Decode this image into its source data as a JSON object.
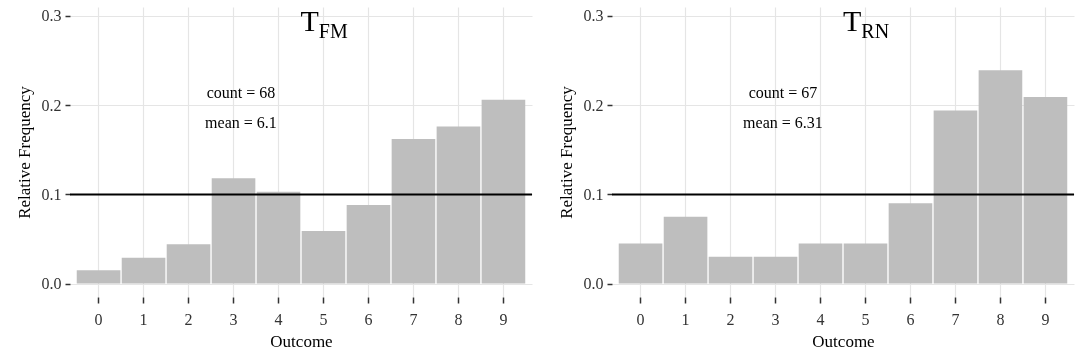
{
  "chart_data": [
    {
      "type": "bar",
      "title": "T$_{FM}$",
      "xlabel": "Outcome",
      "ylabel": "Relative Frequency",
      "categories": [
        "0",
        "1",
        "2",
        "3",
        "4",
        "5",
        "6",
        "7",
        "8",
        "9"
      ],
      "values": [
        0.015,
        0.029,
        0.044,
        0.118,
        0.103,
        0.059,
        0.088,
        0.162,
        0.176,
        0.206
      ],
      "color": "#bebebe",
      "ylim": [
        -0.015,
        0.31
      ],
      "yticks": [
        {
          "value": 0,
          "label": "0.0"
        },
        0.1,
        0.2,
        0.3
      ],
      "grid": true,
      "ref_lines": [
        {
          "axis": "y",
          "value": 0.1,
          "color": "#000000"
        }
      ],
      "annotations": [
        "count = 68",
        "mean = 6.1"
      ]
    },
    {
      "type": "bar",
      "title": "T$_{RN}$",
      "xlabel": "Outcome",
      "ylabel": "Relative Frequency",
      "categories": [
        "0",
        "1",
        "2",
        "3",
        "4",
        "5",
        "6",
        "7",
        "8",
        "9"
      ],
      "values": [
        0.045,
        0.075,
        0.03,
        0.03,
        0.045,
        0.045,
        0.09,
        0.194,
        0.239,
        0.209
      ],
      "color": "#bebebe",
      "ylim": [
        -0.015,
        0.31
      ],
      "yticks": [
        {
          "value": 0,
          "label": "0.0"
        },
        0.1,
        0.2,
        0.3
      ],
      "grid": true,
      "ref_lines": [
        {
          "axis": "y",
          "value": 0.1,
          "color": "#000000"
        }
      ],
      "annotations": [
        "count = 67",
        "mean = 6.31"
      ]
    }
  ]
}
